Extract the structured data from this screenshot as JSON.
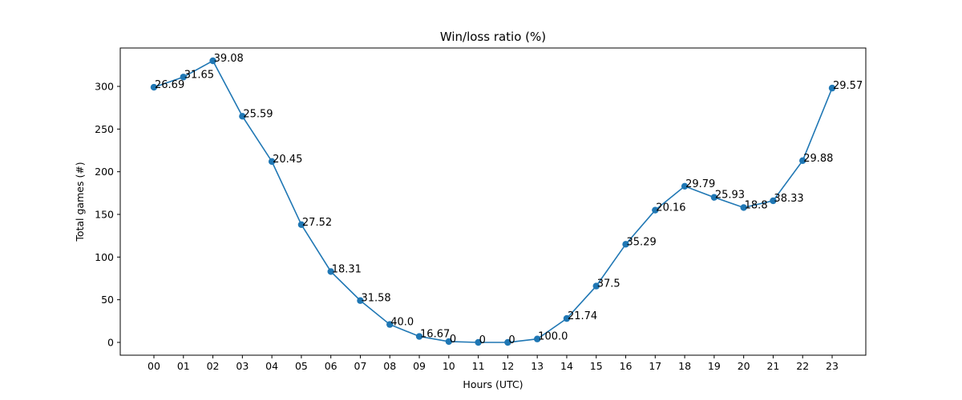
{
  "chart_data": {
    "type": "line",
    "title": "Win/loss ratio (%)",
    "xlabel": "Hours (UTC)",
    "ylabel": "Total games (#)",
    "categories": [
      "00",
      "01",
      "02",
      "03",
      "04",
      "05",
      "06",
      "07",
      "08",
      "09",
      "10",
      "11",
      "12",
      "13",
      "14",
      "15",
      "16",
      "17",
      "18",
      "19",
      "20",
      "21",
      "22",
      "23"
    ],
    "yticks": [
      0,
      50,
      100,
      150,
      200,
      250,
      300
    ],
    "ylim": [
      -15,
      345
    ],
    "grid": false,
    "series": [
      {
        "color": "#1f77b4",
        "values": [
          299,
          311,
          330,
          265,
          212,
          138,
          83,
          49,
          21,
          7,
          1,
          0,
          0,
          4,
          28,
          66,
          115,
          155,
          183,
          170,
          158,
          166,
          213,
          298
        ],
        "labels": [
          "26.69",
          "31.65",
          "39.08",
          "25.59",
          "20.45",
          "27.52",
          "18.31",
          "31.58",
          "40.0",
          "16.67",
          "0",
          "0",
          "0",
          "100.0",
          "21.74",
          "37.5",
          "35.29",
          "20.16",
          "29.79",
          "25.93",
          "18.8",
          "38.33",
          "29.88",
          "29.57"
        ]
      }
    ]
  }
}
